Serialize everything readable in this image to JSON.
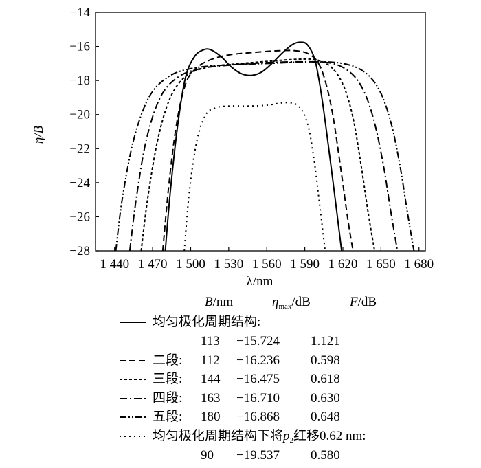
{
  "chart_data": {
    "type": "line",
    "xlabel": "λ/nm",
    "ylabel": "η/B",
    "xlim": [
      1425,
      1685
    ],
    "ylim": [
      -28,
      -14
    ],
    "x_ticks": [
      1440,
      1470,
      1500,
      1530,
      1560,
      1590,
      1620,
      1650,
      1680
    ],
    "x_tick_labels": [
      "1 440",
      "1 470",
      "1 500",
      "1 530",
      "1 560",
      "1 590",
      "1 620",
      "1 650",
      "1 680"
    ],
    "y_ticks": [
      -28,
      -26,
      -24,
      -22,
      -20,
      -18,
      -16,
      -14
    ],
    "y_tick_labels": [
      "−28",
      "−26",
      "−24",
      "−22",
      "−20",
      "−18",
      "−16",
      "−14"
    ],
    "grid": false,
    "legend_position": "below",
    "legend_headers": {
      "B": "B",
      "B_unit": "/nm",
      "eta": "η",
      "eta_sub": "max",
      "eta_unit": "/dB",
      "F": "F",
      "F_unit": "/dB"
    },
    "series": [
      {
        "name": "均匀极化周期结构:",
        "style": "solid",
        "B": "113",
        "eta_max": "−15.724",
        "F": "1.121",
        "x": [
          1480,
          1484,
          1490,
          1496,
          1503,
          1510,
          1516,
          1524,
          1532,
          1540,
          1548,
          1556,
          1564,
          1572,
          1580,
          1586,
          1592,
          1598,
          1603,
          1608,
          1614,
          1619
        ],
        "y": [
          -28,
          -24.5,
          -20.5,
          -17.8,
          -16.6,
          -16.2,
          -16.2,
          -16.6,
          -17.2,
          -17.6,
          -17.7,
          -17.5,
          -17.0,
          -16.4,
          -15.9,
          -15.75,
          -15.9,
          -16.8,
          -18.8,
          -21.5,
          -25.0,
          -28
        ]
      },
      {
        "name": "二段:",
        "style": "dashed",
        "B": "112",
        "eta_max": "−16.236",
        "F": "0.598",
        "x": [
          1478,
          1483,
          1489,
          1496,
          1504,
          1515,
          1530,
          1550,
          1570,
          1582,
          1592,
          1600,
          1606,
          1612,
          1618,
          1624,
          1628
        ],
        "y": [
          -28,
          -24.0,
          -20.5,
          -18.2,
          -17.3,
          -16.8,
          -16.5,
          -16.35,
          -16.25,
          -16.25,
          -16.4,
          -16.9,
          -18.0,
          -20.0,
          -23.0,
          -26.2,
          -28
        ]
      },
      {
        "name": "三段:",
        "style": "short-dashed",
        "B": "144",
        "eta_max": "−16.475",
        "F": "0.618",
        "x": [
          1461,
          1466,
          1474,
          1484,
          1497,
          1515,
          1540,
          1565,
          1585,
          1600,
          1612,
          1621,
          1628,
          1634,
          1640,
          1645
        ],
        "y": [
          -28,
          -25.0,
          -21.5,
          -19.0,
          -17.7,
          -17.2,
          -17.0,
          -16.85,
          -16.75,
          -16.8,
          -17.3,
          -18.4,
          -20.2,
          -22.8,
          -25.8,
          -28
        ]
      },
      {
        "name": "四段:",
        "style": "dash-dot",
        "B": "163",
        "eta_max": "−16.710",
        "F": "0.630",
        "x": [
          1452,
          1457,
          1465,
          1476,
          1490,
          1508,
          1530,
          1560,
          1590,
          1612,
          1627,
          1637,
          1645,
          1652,
          1658,
          1663
        ],
        "y": [
          -28,
          -25.0,
          -21.5,
          -19.0,
          -17.8,
          -17.3,
          -17.1,
          -16.95,
          -16.9,
          -17.0,
          -17.6,
          -18.7,
          -20.5,
          -23.0,
          -25.8,
          -28
        ]
      },
      {
        "name": "五段:",
        "style": "dash-dot-dot",
        "B": "180",
        "eta_max": "−16.868",
        "F": "0.648",
        "x": [
          1441,
          1446,
          1455,
          1467,
          1482,
          1500,
          1525,
          1560,
          1595,
          1620,
          1637,
          1649,
          1658,
          1665,
          1671,
          1676
        ],
        "y": [
          -28,
          -25.0,
          -21.5,
          -19.0,
          -17.8,
          -17.3,
          -17.1,
          -17.0,
          -16.9,
          -17.0,
          -17.5,
          -18.6,
          -20.5,
          -23.0,
          -25.8,
          -28
        ]
      },
      {
        "name": "均匀极化周期结构下将p₂红移0.62 nm:",
        "name_parts": [
          "均匀极化周期结构下将",
          "p",
          "2",
          "红移0.62 nm:"
        ],
        "style": "dotted",
        "B": "90",
        "eta_max": "−19.537",
        "F": "0.580",
        "x": [
          1495,
          1499,
          1505,
          1512,
          1520,
          1530,
          1545,
          1560,
          1575,
          1585,
          1592,
          1597,
          1602,
          1606
        ],
        "y": [
          -28,
          -24.5,
          -21.5,
          -20.0,
          -19.6,
          -19.5,
          -19.5,
          -19.45,
          -19.3,
          -19.5,
          -20.5,
          -22.5,
          -25.5,
          -28
        ]
      }
    ]
  }
}
